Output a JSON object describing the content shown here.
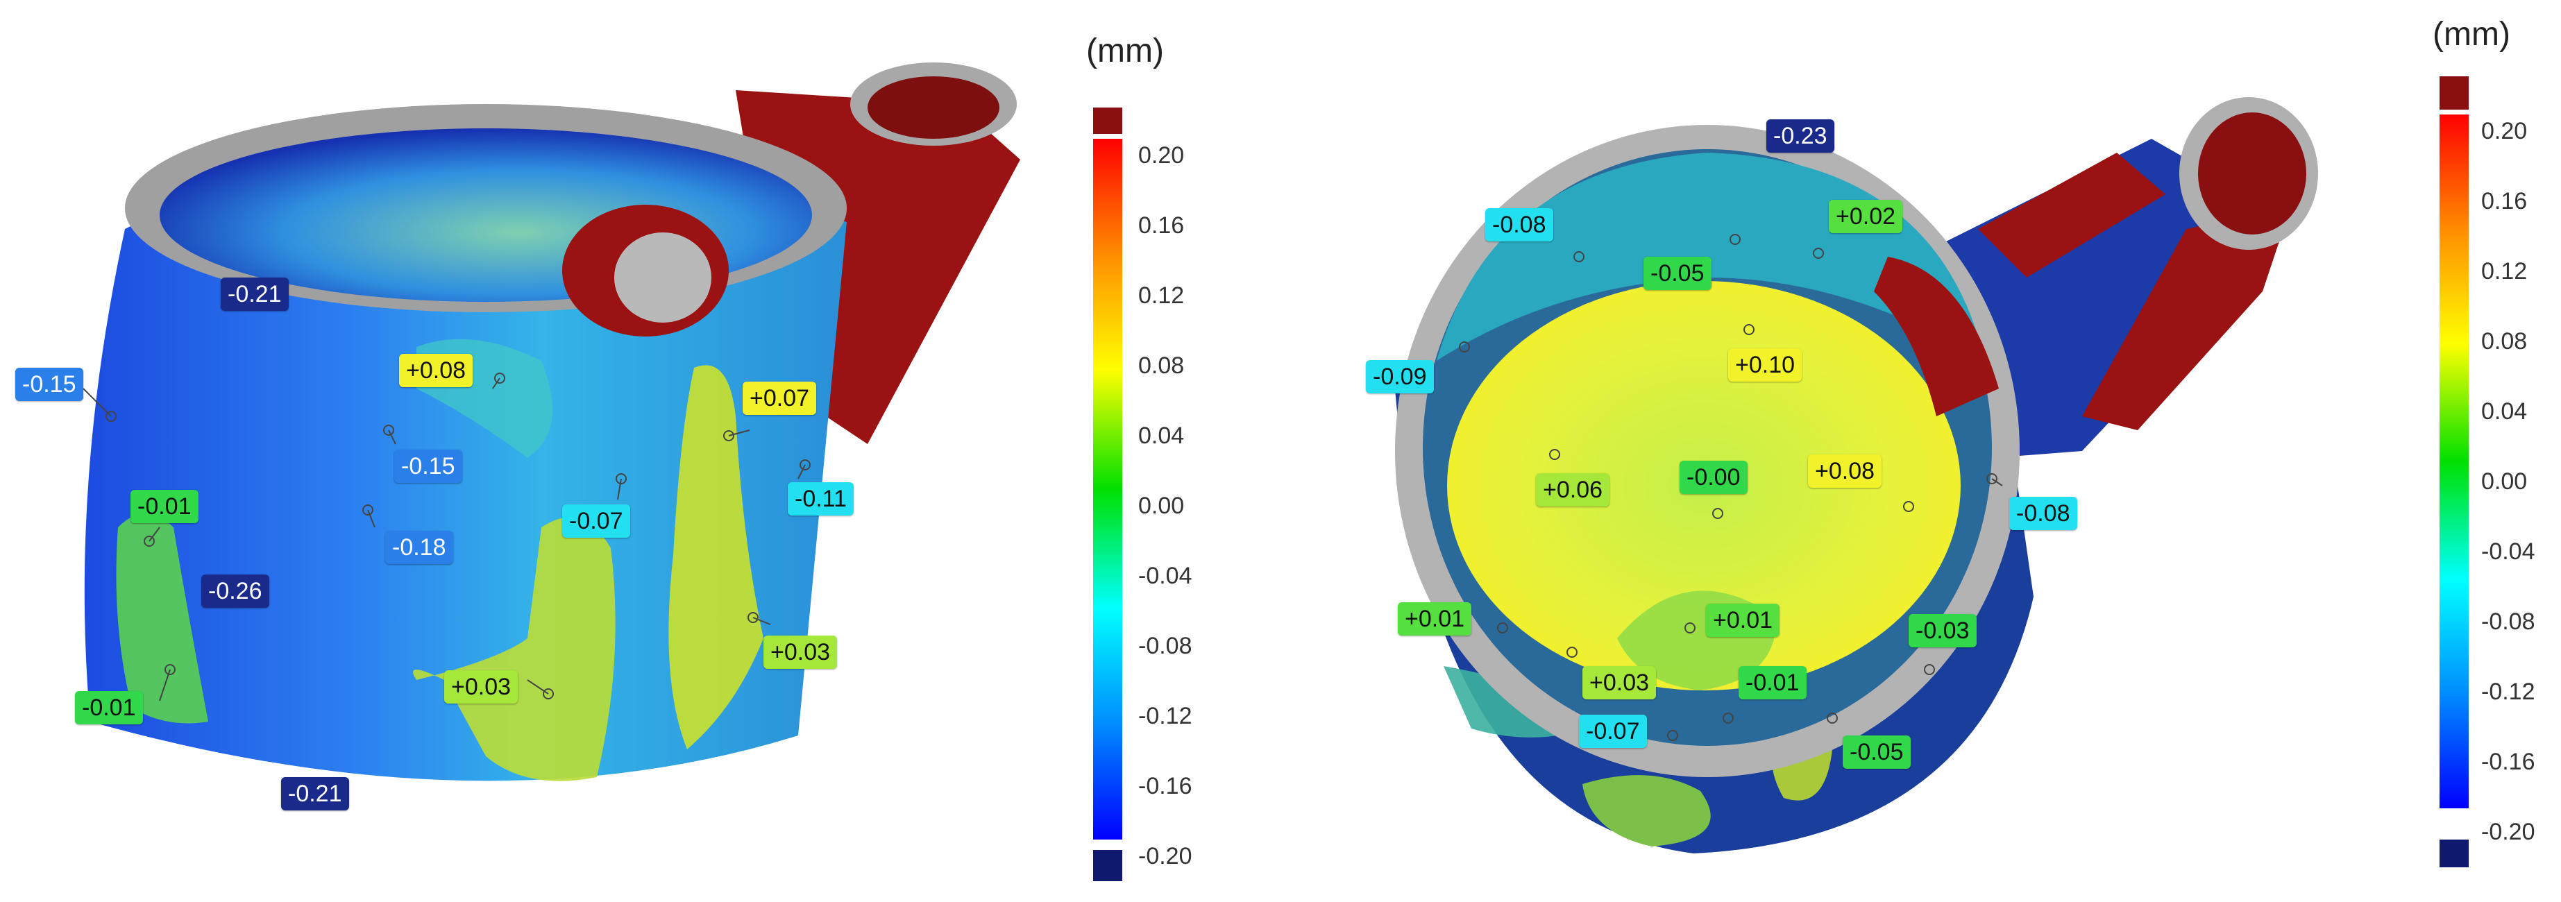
{
  "unit_label": "(mm)",
  "colors": {
    "over": "#8a0f10",
    "under": "#0f1a6e",
    "scale_stops": [
      "#0000ff",
      "#0090ff",
      "#00ffff",
      "#00e000",
      "#ffff00",
      "#ff9000",
      "#ff0000"
    ]
  },
  "scale_ticks": [
    "0.20",
    "0.16",
    "0.12",
    "0.08",
    "0.04",
    "0.00",
    "-0.04",
    "-0.08",
    "-0.12",
    "-0.16",
    "-0.20"
  ],
  "left_view": {
    "labels": [
      "-0.21",
      "-0.15",
      "+0.08",
      "+0.07",
      "-0.15",
      "-0.11",
      "-0.01",
      "-0.07",
      "-0.18",
      "-0.26",
      "+0.03",
      "+0.03",
      "-0.01",
      "-0.21"
    ]
  },
  "right_view": {
    "labels": [
      "-0.23",
      "-0.08",
      "+0.02",
      "-0.05",
      "-0.09",
      "+0.10",
      "+0.08",
      "+0.06",
      "-0.00",
      "-0.08",
      "+0.01",
      "+0.01",
      "-0.03",
      "+0.03",
      "-0.01",
      "-0.07",
      "-0.05"
    ]
  }
}
